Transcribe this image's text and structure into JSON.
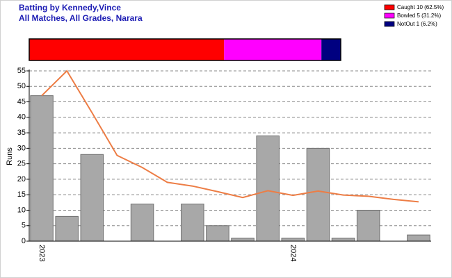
{
  "chart_data": [
    {
      "type": "stacked-bar",
      "title": "Batting by Kennedy,Vince",
      "subtitle": "All Matches, All Grades, Narara",
      "series": [
        {
          "name": "Caught 10 (62.5%)",
          "color": "#ff0000",
          "values": [
            62.5
          ]
        },
        {
          "name": "Bowled 5 (31.2%)",
          "color": "#ff00ff",
          "values": [
            31.2
          ]
        },
        {
          "name": "NotOut 1 (6.2%)",
          "color": "#000080",
          "values": [
            6.2
          ]
        }
      ]
    },
    {
      "type": "bar",
      "y_label": "Runs",
      "categories": [
        "2023",
        null,
        null,
        null,
        null,
        null,
        null,
        null,
        null,
        null,
        "2024",
        null,
        null,
        null,
        null,
        null
      ],
      "values": [
        47,
        8,
        28,
        0,
        12,
        0,
        12,
        5,
        1,
        34,
        1,
        30,
        1,
        10,
        0,
        2
      ],
      "color": "#a8a8a8",
      "line_values": [
        47,
        55,
        41.5,
        27.7,
        23.8,
        19,
        17.8,
        16,
        14.1,
        16.3,
        14.8,
        16.2,
        14.9,
        14.5,
        13.5,
        12.7
      ],
      "line_color": "#ed7d45",
      "ylim": [
        0,
        55
      ],
      "yticks": [
        0,
        5,
        10,
        15,
        20,
        25,
        30,
        35,
        40,
        45,
        50,
        55
      ],
      "grid": true
    }
  ]
}
